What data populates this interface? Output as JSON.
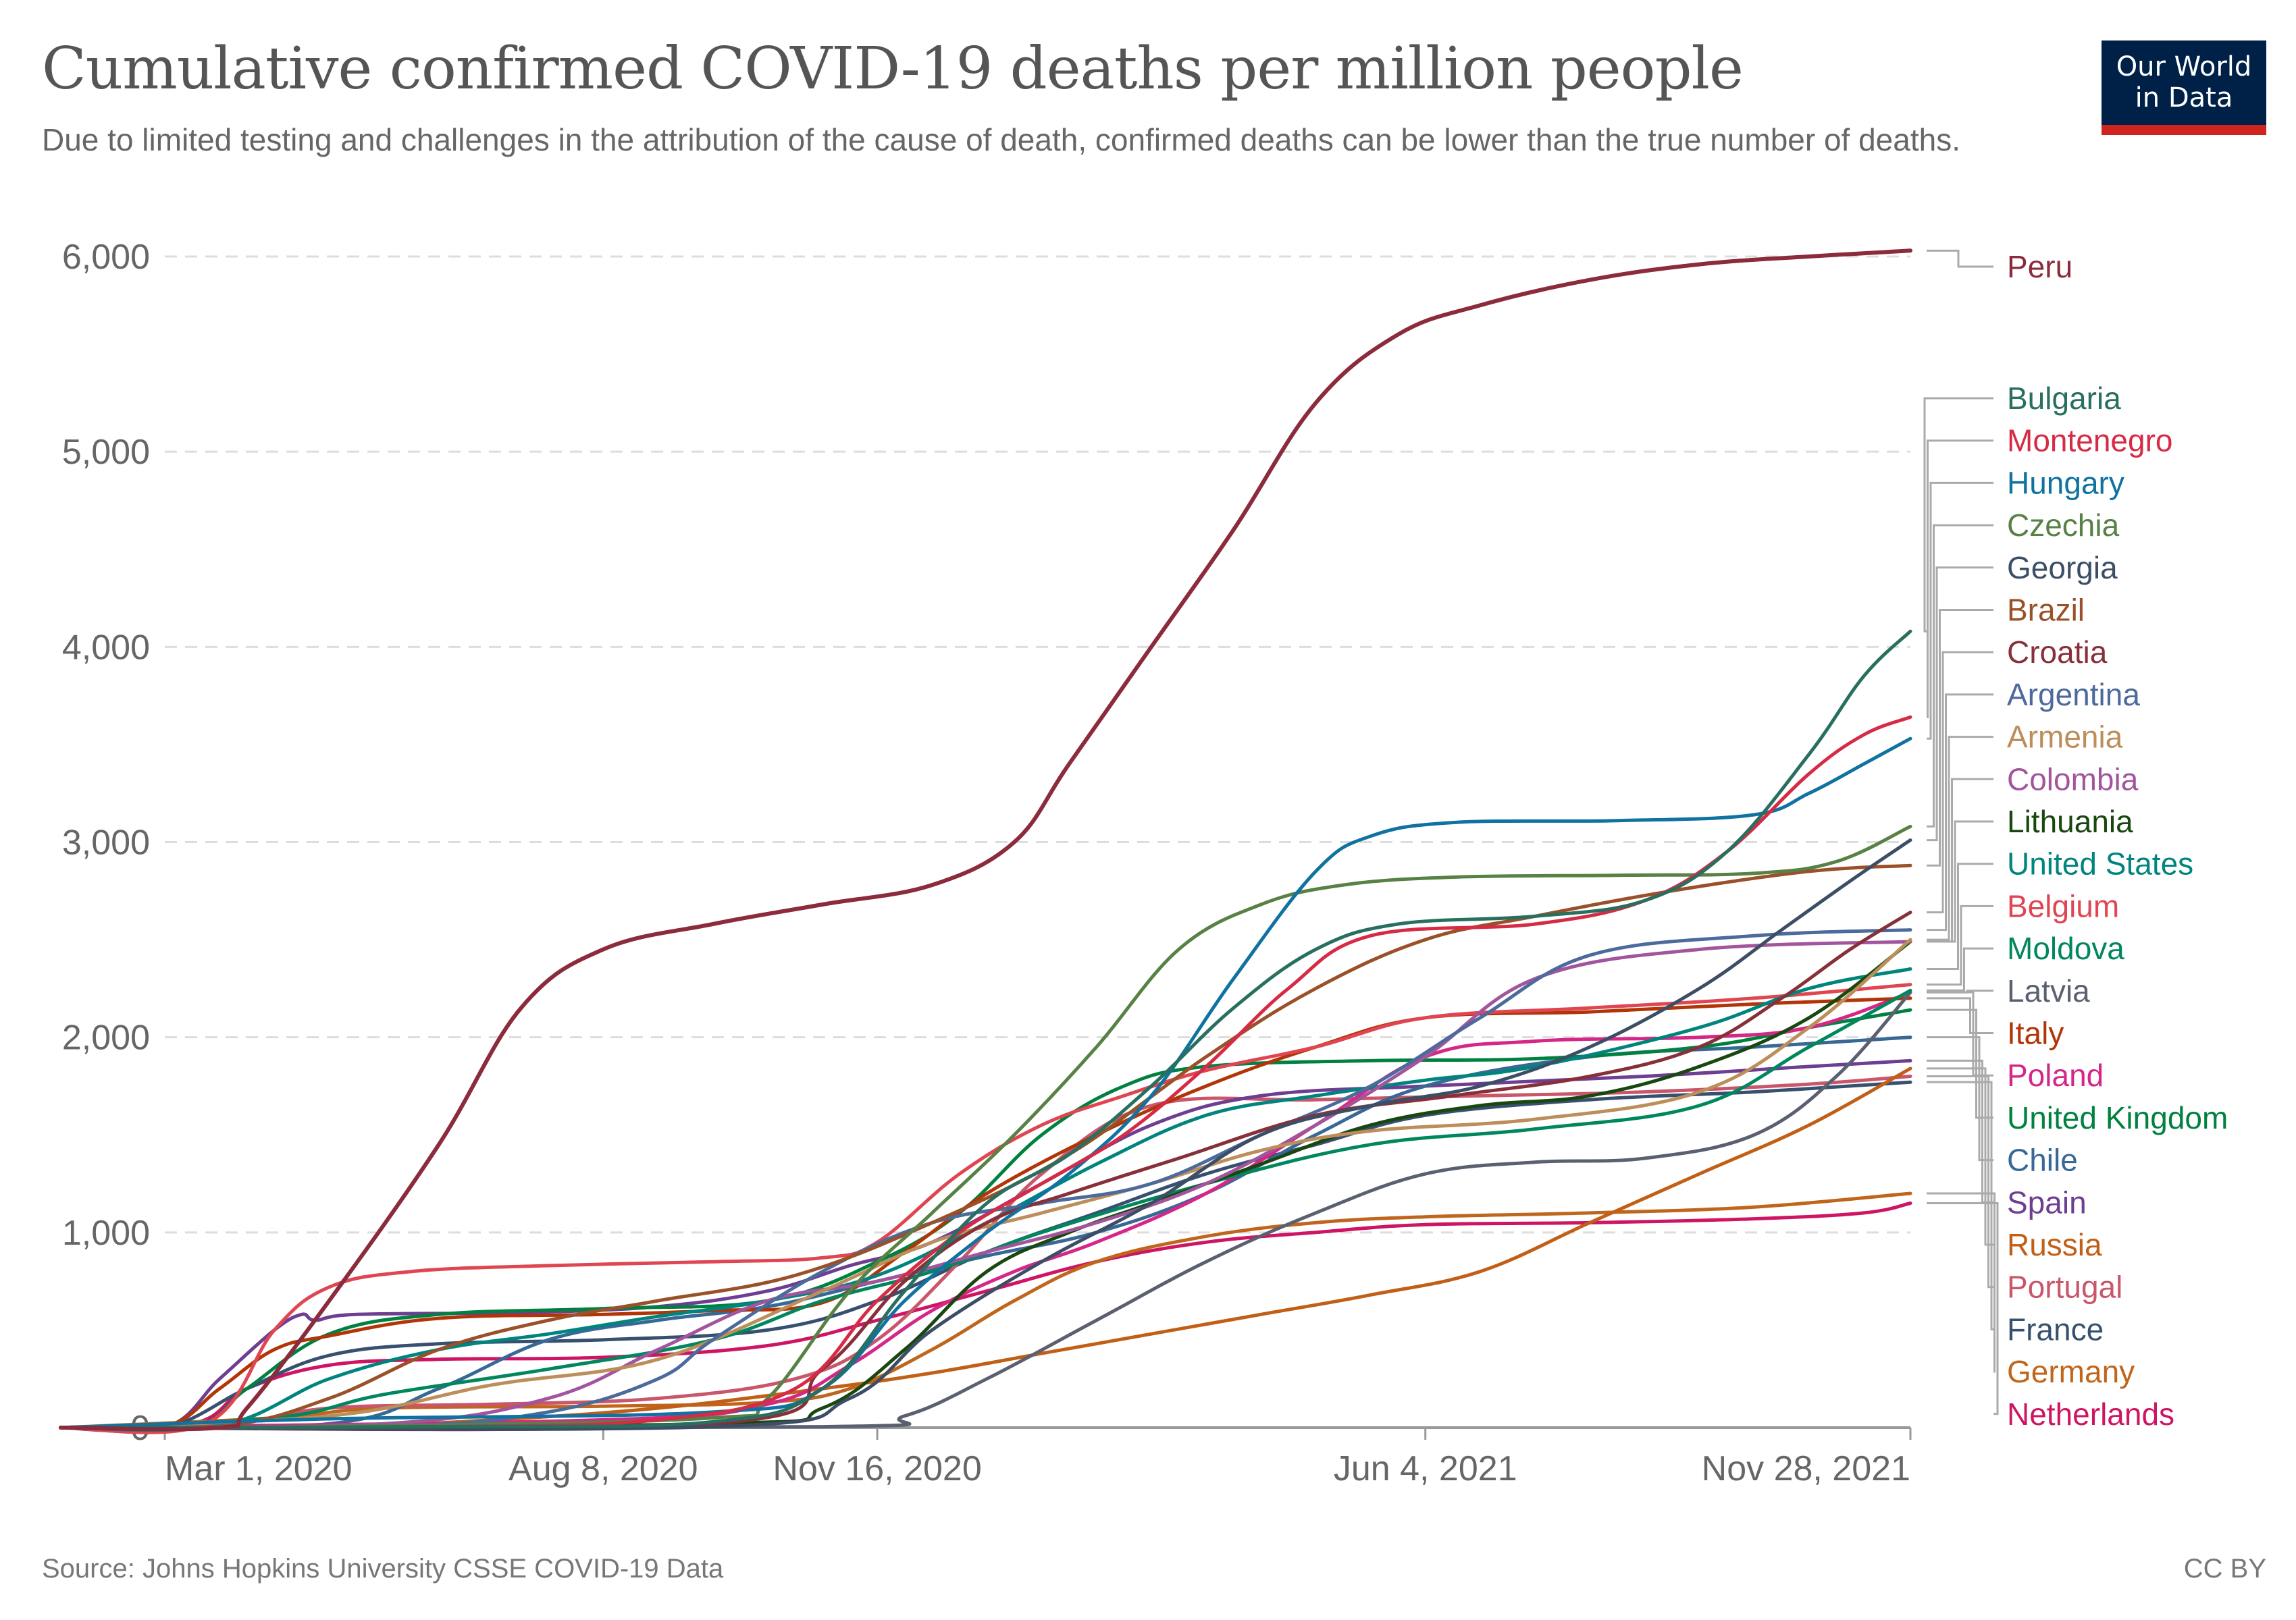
{
  "header": {
    "title": "Cumulative confirmed COVID-19 deaths per million people",
    "subtitle": "Due to limited testing and challenges in the attribution of the cause of death, confirmed deaths can be lower than the true number of deaths.",
    "logo_line1": "Our World",
    "logo_line2": "in Data"
  },
  "footer": {
    "source": "Source: Johns Hopkins University CSSE COVID-19 Data",
    "license": "CC BY"
  },
  "chart_data": {
    "type": "line",
    "title": "Cumulative confirmed COVID-19 deaths per million people",
    "xlabel": "",
    "ylabel": "",
    "x_unit": "days since Mar 1, 2020",
    "xlim": [
      -38,
      640
    ],
    "ylim": [
      0,
      6000
    ],
    "yticks": [
      0,
      1000,
      2000,
      3000,
      4000,
      5000,
      6000
    ],
    "ytick_labels": [
      "0",
      "1,000",
      "2,000",
      "3,000",
      "4,000",
      "5,000",
      "6,000"
    ],
    "xticks": [
      0,
      160,
      260,
      460,
      637
    ],
    "xtick_labels": [
      "Mar 1, 2020",
      "Aug 8, 2020",
      "Nov 16, 2020",
      "Jun 4, 2021",
      "Nov 28, 2021"
    ],
    "grid": "horizontal-dashed",
    "legend": "right, end-of-line labels",
    "series": [
      {
        "name": "Peru",
        "color": "#8b2b3c",
        "x": [
          -38,
          20,
          30,
          60,
          100,
          130,
          160,
          200,
          240,
          280,
          310,
          330,
          360,
          390,
          420,
          450,
          480,
          520,
          560,
          600,
          637
        ],
        "values": [
          0,
          0,
          100,
          650,
          1450,
          2150,
          2450,
          2580,
          2680,
          2780,
          3000,
          3400,
          4000,
          4600,
          5250,
          5600,
          5750,
          5880,
          5960,
          6000,
          6030
        ]
      },
      {
        "name": "Bulgaria",
        "color": "#286f60",
        "x": [
          -38,
          100,
          200,
          240,
          270,
          300,
          330,
          360,
          390,
          420,
          450,
          500,
          540,
          570,
          600,
          620,
          637
        ],
        "values": [
          0,
          5,
          30,
          200,
          700,
          1150,
          1400,
          1750,
          2150,
          2450,
          2580,
          2620,
          2700,
          2950,
          3450,
          3850,
          4080
        ]
      },
      {
        "name": "Montenegro",
        "color": "#d62b45",
        "x": [
          -38,
          100,
          180,
          230,
          260,
          290,
          320,
          350,
          380,
          410,
          440,
          500,
          540,
          570,
          600,
          620,
          637
        ],
        "values": [
          0,
          5,
          40,
          200,
          650,
          1000,
          1250,
          1500,
          1850,
          2250,
          2520,
          2580,
          2700,
          2950,
          3350,
          3550,
          3640
        ]
      },
      {
        "name": "Hungary",
        "color": "#0f72a0",
        "x": [
          -38,
          60,
          200,
          240,
          270,
          300,
          330,
          360,
          390,
          420,
          440,
          470,
          530,
          580,
          600,
          620,
          637
        ],
        "values": [
          0,
          45,
          80,
          200,
          650,
          1000,
          1300,
          1700,
          2300,
          2850,
          3030,
          3100,
          3110,
          3140,
          3250,
          3400,
          3530
        ]
      },
      {
        "name": "Czechia",
        "color": "#578145",
        "x": [
          -38,
          80,
          200,
          220,
          250,
          280,
          310,
          340,
          370,
          400,
          430,
          470,
          530,
          580,
          610,
          637
        ],
        "values": [
          0,
          10,
          50,
          150,
          700,
          1100,
          1500,
          1950,
          2450,
          2680,
          2780,
          2820,
          2830,
          2840,
          2900,
          3080
        ]
      },
      {
        "name": "Georgia",
        "color": "#3c4e66",
        "x": [
          -38,
          200,
          250,
          280,
          320,
          360,
          400,
          440,
          480,
          520,
          560,
          590,
          615,
          637
        ],
        "values": [
          0,
          5,
          150,
          500,
          850,
          1150,
          1500,
          1650,
          1750,
          1950,
          2250,
          2550,
          2800,
          3010
        ]
      },
      {
        "name": "Brazil",
        "color": "#9a5129",
        "x": [
          -38,
          20,
          60,
          100,
          140,
          180,
          230,
          280,
          330,
          380,
          420,
          460,
          500,
          550,
          600,
          637
        ],
        "values": [
          0,
          5,
          150,
          400,
          550,
          650,
          780,
          1050,
          1400,
          1900,
          2250,
          2500,
          2620,
          2750,
          2850,
          2880
        ]
      },
      {
        "name": "Croatia",
        "color": "#883039",
        "x": [
          -38,
          200,
          240,
          270,
          300,
          330,
          370,
          420,
          470,
          520,
          560,
          590,
          615,
          637
        ],
        "values": [
          0,
          20,
          300,
          750,
          1050,
          1200,
          1380,
          1600,
          1700,
          1800,
          1950,
          2200,
          2450,
          2640
        ]
      },
      {
        "name": "Argentina",
        "color": "#4c6a9c",
        "x": [
          -38,
          80,
          140,
          180,
          200,
          240,
          280,
          320,
          360,
          400,
          440,
          480,
          520,
          580,
          637
        ],
        "values": [
          0,
          5,
          80,
          250,
          450,
          800,
          1050,
          1150,
          1250,
          1500,
          1750,
          2100,
          2420,
          2520,
          2550
        ]
      },
      {
        "name": "Armenia",
        "color": "#bc8e5a",
        "x": [
          -38,
          60,
          120,
          180,
          240,
          280,
          320,
          360,
          400,
          440,
          500,
          560,
          600,
          637
        ],
        "values": [
          0,
          60,
          220,
          350,
          700,
          950,
          1100,
          1250,
          1420,
          1520,
          1580,
          1720,
          2050,
          2500
        ]
      },
      {
        "name": "Colombia",
        "color": "#a2559c",
        "x": [
          -38,
          80,
          140,
          180,
          220,
          260,
          300,
          340,
          380,
          420,
          460,
          500,
          560,
          637
        ],
        "values": [
          0,
          20,
          150,
          400,
          650,
          750,
          900,
          1050,
          1250,
          1550,
          1900,
          2300,
          2450,
          2490
        ]
      },
      {
        "name": "Lithuania",
        "color": "#18470f",
        "x": [
          -38,
          200,
          240,
          270,
          300,
          330,
          360,
          400,
          440,
          480,
          520,
          560,
          600,
          637
        ],
        "values": [
          0,
          20,
          100,
          400,
          800,
          1000,
          1150,
          1350,
          1550,
          1650,
          1700,
          1850,
          2100,
          2490
        ]
      },
      {
        "name": "United States",
        "color": "#00847e",
        "x": [
          -38,
          20,
          60,
          100,
          140,
          180,
          220,
          260,
          300,
          340,
          380,
          420,
          460,
          500,
          560,
          600,
          637
        ],
        "values": [
          0,
          10,
          250,
          400,
          480,
          570,
          650,
          780,
          1050,
          1350,
          1600,
          1700,
          1780,
          1850,
          2050,
          2250,
          2350
        ]
      },
      {
        "name": "Belgium",
        "color": "#e04651",
        "x": [
          -38,
          15,
          40,
          60,
          90,
          140,
          200,
          240,
          260,
          290,
          320,
          350,
          380,
          420,
          460,
          520,
          580,
          637
        ],
        "values": [
          0,
          20,
          500,
          720,
          800,
          830,
          850,
          870,
          950,
          1300,
          1550,
          1700,
          1830,
          1950,
          2100,
          2150,
          2200,
          2270
        ]
      },
      {
        "name": "Moldova",
        "color": "#00875e",
        "x": [
          -38,
          40,
          80,
          140,
          200,
          240,
          280,
          320,
          380,
          440,
          500,
          560,
          600,
          637
        ],
        "values": [
          0,
          50,
          170,
          300,
          450,
          650,
          800,
          1000,
          1250,
          1450,
          1530,
          1650,
          1950,
          2240
        ]
      },
      {
        "name": "Latvia",
        "color": "#5b6070",
        "x": [
          -38,
          240,
          270,
          300,
          340,
          380,
          420,
          460,
          500,
          540,
          580,
          610,
          637
        ],
        "values": [
          0,
          5,
          60,
          250,
          550,
          850,
          1100,
          1300,
          1360,
          1380,
          1500,
          1800,
          2230
        ]
      },
      {
        "name": "Italy",
        "color": "#b13507",
        "x": [
          -38,
          0,
          20,
          40,
          60,
          100,
          160,
          200,
          240,
          270,
          300,
          340,
          380,
          420,
          460,
          520,
          580,
          637
        ],
        "values": [
          0,
          5,
          200,
          400,
          470,
          560,
          580,
          600,
          640,
          900,
          1200,
          1500,
          1750,
          1950,
          2100,
          2130,
          2170,
          2200
        ]
      },
      {
        "name": "Poland",
        "color": "#d52788",
        "x": [
          -38,
          160,
          220,
          250,
          280,
          310,
          340,
          380,
          420,
          460,
          500,
          560,
          600,
          637
        ],
        "values": [
          0,
          40,
          120,
          320,
          600,
          800,
          950,
          1200,
          1550,
          1900,
          1980,
          2000,
          2050,
          2230
        ]
      },
      {
        "name": "United Kingdom",
        "color": "#00813f",
        "x": [
          -38,
          10,
          30,
          60,
          100,
          160,
          220,
          260,
          290,
          320,
          350,
          380,
          440,
          500,
          560,
          600,
          637
        ],
        "values": [
          0,
          5,
          200,
          480,
          580,
          610,
          650,
          850,
          1100,
          1500,
          1750,
          1850,
          1880,
          1890,
          1950,
          2050,
          2140
        ]
      },
      {
        "name": "Chile",
        "color": "#386895",
        "x": [
          -38,
          60,
          100,
          140,
          180,
          220,
          260,
          300,
          340,
          380,
          420,
          460,
          520,
          580,
          637
        ],
        "values": [
          0,
          20,
          200,
          450,
          550,
          620,
          750,
          880,
          1000,
          1200,
          1500,
          1750,
          1900,
          1950,
          2000
        ]
      },
      {
        "name": "Spain",
        "color": "#6d3e91",
        "x": [
          -38,
          0,
          20,
          40,
          50,
          55,
          70,
          130,
          180,
          220,
          250,
          280,
          320,
          360,
          400,
          460,
          540,
          600,
          637
        ],
        "values": [
          0,
          0,
          250,
          500,
          580,
          550,
          580,
          590,
          620,
          700,
          830,
          950,
          1250,
          1550,
          1700,
          1750,
          1800,
          1850,
          1880
        ]
      },
      {
        "name": "Russia",
        "color": "#c15f17",
        "x": [
          -38,
          60,
          120,
          180,
          240,
          280,
          320,
          360,
          400,
          440,
          480,
          520,
          560,
          600,
          637
        ],
        "values": [
          0,
          5,
          40,
          100,
          200,
          280,
          380,
          480,
          580,
          680,
          800,
          1050,
          1300,
          1550,
          1840
        ]
      },
      {
        "name": "Portugal",
        "color": "#c9566b",
        "x": [
          -38,
          20,
          60,
          120,
          180,
          230,
          260,
          290,
          320,
          360,
          420,
          480,
          540,
          600,
          637
        ],
        "values": [
          0,
          10,
          100,
          120,
          150,
          250,
          450,
          850,
          1300,
          1650,
          1680,
          1700,
          1720,
          1760,
          1800
        ]
      },
      {
        "name": "France",
        "color": "#38506f",
        "x": [
          -38,
          0,
          30,
          60,
          100,
          160,
          220,
          260,
          300,
          340,
          380,
          420,
          460,
          520,
          580,
          637
        ],
        "values": [
          0,
          0,
          200,
          370,
          430,
          450,
          500,
          650,
          900,
          1100,
          1300,
          1450,
          1600,
          1680,
          1720,
          1770
        ]
      },
      {
        "name": "Germany",
        "color": "#c0661c",
        "x": [
          -38,
          40,
          80,
          160,
          220,
          250,
          280,
          310,
          340,
          380,
          420,
          460,
          520,
          580,
          637
        ],
        "values": [
          0,
          50,
          100,
          110,
          130,
          200,
          400,
          650,
          850,
          980,
          1050,
          1080,
          1100,
          1130,
          1200
        ]
      },
      {
        "name": "Netherlands",
        "color": "#ce1563",
        "x": [
          -38,
          10,
          30,
          60,
          100,
          160,
          220,
          260,
          300,
          340,
          380,
          420,
          460,
          520,
          580,
          620,
          637
        ],
        "values": [
          0,
          20,
          200,
          320,
          350,
          360,
          420,
          550,
          700,
          850,
          950,
          1000,
          1040,
          1050,
          1070,
          1100,
          1150
        ]
      }
    ],
    "legend_order": [
      "Peru",
      "Bulgaria",
      "Montenegro",
      "Hungary",
      "Czechia",
      "Georgia",
      "Brazil",
      "Croatia",
      "Argentina",
      "Armenia",
      "Colombia",
      "Lithuania",
      "United States",
      "Belgium",
      "Moldova",
      "Latvia",
      "Italy",
      "Poland",
      "United Kingdom",
      "Chile",
      "Spain",
      "Russia",
      "Portugal",
      "France",
      "Germany",
      "Netherlands"
    ]
  }
}
